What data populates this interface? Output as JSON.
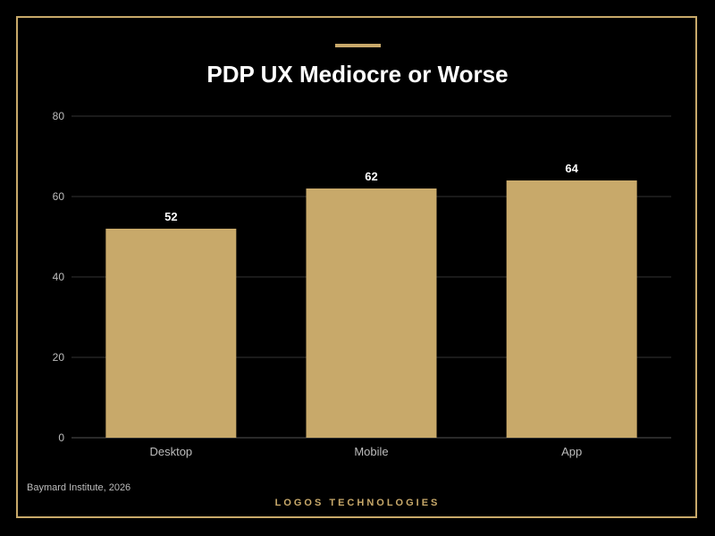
{
  "colors": {
    "background": "#000000",
    "accent": "#c8a96a",
    "bar": "#c8a96a",
    "gridline": "#333333",
    "axis_text": "#bdbdbd",
    "label_text": "#ffffff"
  },
  "chart_data": {
    "type": "bar",
    "title": "PDP UX Mediocre or Worse",
    "xlabel": "",
    "ylabel": "",
    "categories": [
      "Desktop",
      "Mobile",
      "App"
    ],
    "values": [
      52,
      62,
      64
    ],
    "ylim": [
      0,
      80
    ],
    "yticks": [
      0,
      20,
      40,
      60,
      80
    ],
    "grid": true,
    "data_labels": true
  },
  "footer": {
    "source": "Baymard Institute, 2026",
    "brand": "LOGOS TECHNOLOGIES"
  }
}
